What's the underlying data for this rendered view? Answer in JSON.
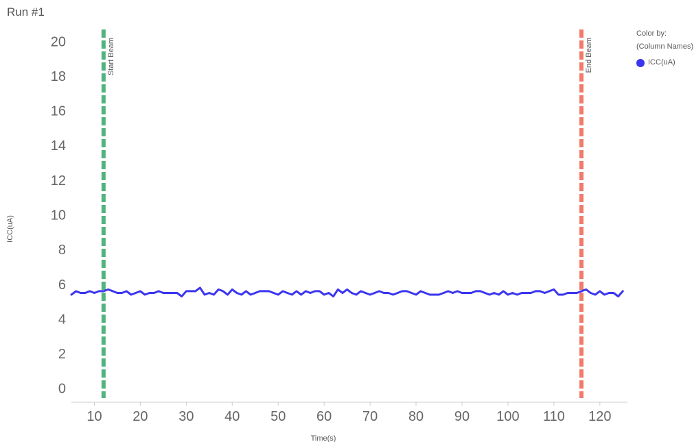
{
  "title": "Run #1",
  "legend": {
    "heading": "Color by:",
    "subheading": "(Column Names)",
    "items": [
      {
        "label": "ICC(uA)",
        "color": "#3b35f0"
      }
    ]
  },
  "chart_data": {
    "type": "line",
    "xlabel": "Time(s)",
    "ylabel": "ICC(uA)",
    "xlim": [
      5,
      126
    ],
    "ylim": [
      -0.8,
      20.8
    ],
    "x_ticks": [
      10,
      20,
      30,
      40,
      50,
      60,
      70,
      80,
      90,
      100,
      110,
      120
    ],
    "y_ticks": [
      0,
      2,
      4,
      6,
      8,
      10,
      12,
      14,
      16,
      18,
      20
    ],
    "grid": false,
    "legend_position": "top-right",
    "reference_lines": [
      {
        "label": "Start Beam",
        "x": 12,
        "color": "#52b37f",
        "style": "dashed"
      },
      {
        "label": "End Beam",
        "x": 116,
        "color": "#f27a6a",
        "style": "dashed"
      }
    ],
    "series": [
      {
        "name": "ICC(uA)",
        "color": "#3b35f0",
        "x": [
          5,
          6,
          7,
          8,
          9,
          10,
          11,
          12,
          13,
          14,
          15,
          16,
          17,
          18,
          19,
          20,
          21,
          22,
          23,
          24,
          25,
          26,
          27,
          28,
          29,
          30,
          31,
          32,
          33,
          34,
          35,
          36,
          37,
          38,
          39,
          40,
          41,
          42,
          43,
          44,
          45,
          46,
          47,
          48,
          49,
          50,
          51,
          52,
          53,
          54,
          55,
          56,
          57,
          58,
          59,
          60,
          61,
          62,
          63,
          64,
          65,
          66,
          67,
          68,
          69,
          70,
          71,
          72,
          73,
          74,
          75,
          76,
          77,
          78,
          79,
          80,
          81,
          82,
          83,
          84,
          85,
          86,
          87,
          88,
          89,
          90,
          91,
          92,
          93,
          94,
          95,
          96,
          97,
          98,
          99,
          100,
          101,
          102,
          103,
          104,
          105,
          106,
          107,
          108,
          109,
          110,
          111,
          112,
          113,
          114,
          115,
          116,
          117,
          118,
          119,
          120,
          121,
          122,
          123,
          124,
          125
        ],
        "values": [
          5.4,
          5.6,
          5.5,
          5.5,
          5.6,
          5.5,
          5.6,
          5.6,
          5.7,
          5.6,
          5.5,
          5.5,
          5.6,
          5.4,
          5.5,
          5.6,
          5.4,
          5.5,
          5.5,
          5.6,
          5.5,
          5.5,
          5.5,
          5.5,
          5.3,
          5.6,
          5.6,
          5.6,
          5.8,
          5.4,
          5.5,
          5.4,
          5.7,
          5.6,
          5.4,
          5.7,
          5.5,
          5.4,
          5.6,
          5.4,
          5.5,
          5.6,
          5.6,
          5.6,
          5.5,
          5.4,
          5.6,
          5.5,
          5.4,
          5.6,
          5.4,
          5.6,
          5.5,
          5.6,
          5.6,
          5.4,
          5.5,
          5.3,
          5.7,
          5.5,
          5.7,
          5.5,
          5.4,
          5.6,
          5.5,
          5.4,
          5.5,
          5.6,
          5.5,
          5.5,
          5.4,
          5.5,
          5.6,
          5.6,
          5.5,
          5.4,
          5.6,
          5.5,
          5.4,
          5.4,
          5.4,
          5.5,
          5.6,
          5.5,
          5.6,
          5.5,
          5.5,
          5.5,
          5.6,
          5.6,
          5.5,
          5.4,
          5.5,
          5.4,
          5.6,
          5.4,
          5.5,
          5.4,
          5.5,
          5.5,
          5.5,
          5.6,
          5.6,
          5.5,
          5.6,
          5.7,
          5.4,
          5.4,
          5.5,
          5.5,
          5.5,
          5.6,
          5.7,
          5.5,
          5.4,
          5.6,
          5.4,
          5.5,
          5.5,
          5.3,
          5.6
        ]
      }
    ]
  }
}
